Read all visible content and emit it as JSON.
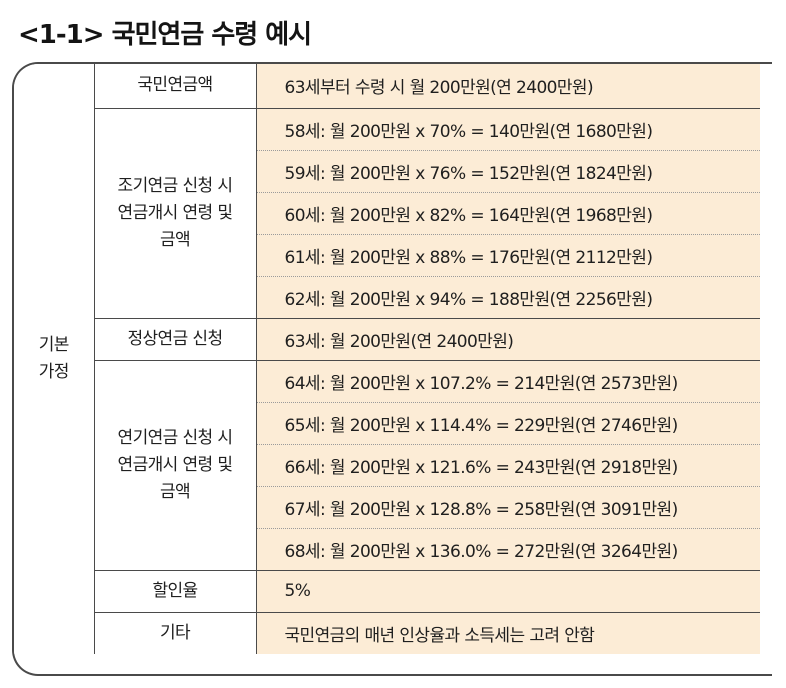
{
  "title": "<1-1> 국민연금 수령 예시",
  "group_label": "기본\n가정",
  "rows": {
    "amount_label": "국민연금액",
    "amount_value": "63세부터 수령 시 월 200만원(연 2400만원)",
    "early_label": "조기연금 신청 시\n연금개시 연령 및\n금액",
    "early_values": [
      "58세: 월 200만원 x 70% = 140만원(연 1680만원)",
      "59세: 월 200만원 x 76% = 152만원(연 1824만원)",
      "60세: 월 200만원 x 82% = 164만원(연 1968만원)",
      "61세: 월 200만원 x 88% = 176만원(연 2112만원)",
      "62세: 월 200만원 x 94% = 188만원(연 2256만원)"
    ],
    "normal_label": "정상연금 신청",
    "normal_value": "63세: 월 200만원(연 2400만원)",
    "late_label": "연기연금 신청 시\n연금개시 연령 및\n금액",
    "late_values": [
      "64세: 월 200만원 x 107.2% = 214만원(연 2573만원)",
      "65세: 월 200만원 x 114.4% = 229만원(연 2746만원)",
      "66세: 월 200만원 x 121.6% = 243만원(연 2918만원)",
      "67세: 월 200만원 x 128.8% = 258만원(연 3091만원)",
      "68세: 월 200만원 x 136.0% = 272만원(연 3264만원)"
    ],
    "discount_label": "할인율",
    "discount_value": "5%",
    "etc_label": "기타",
    "etc_value": "국민연금의 매년 인상율과 소득세는 고려 안함"
  }
}
